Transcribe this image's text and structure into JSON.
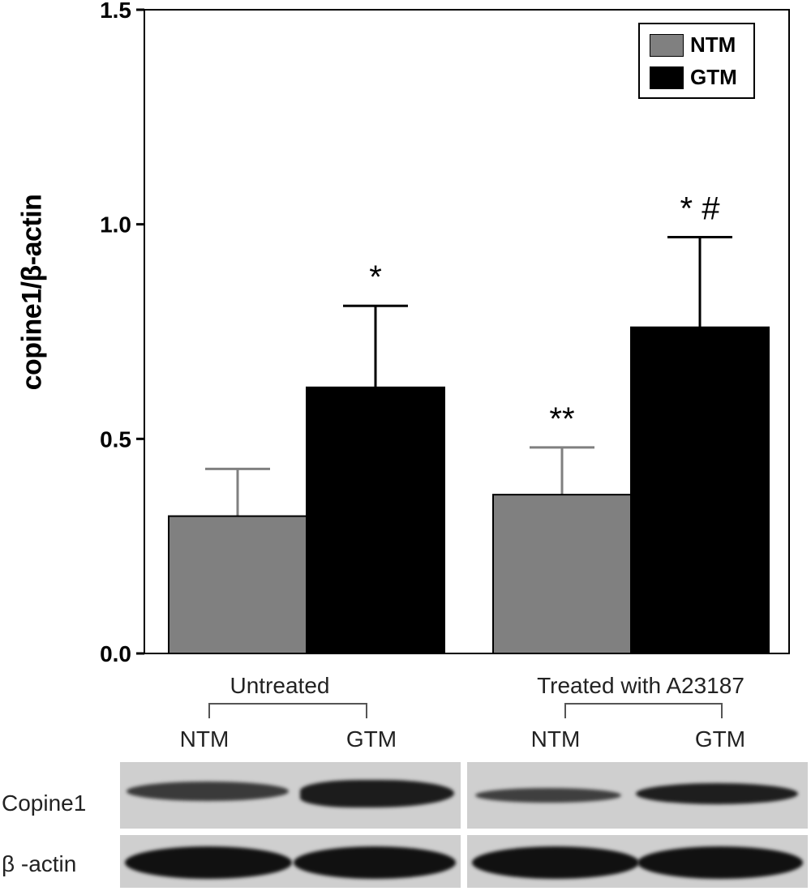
{
  "chart_data": {
    "type": "bar",
    "ylabel": "copine1/β-actin",
    "ylim": [
      0,
      1.5
    ],
    "yticks": [
      "0.0",
      "0.5",
      "1.0",
      "1.5"
    ],
    "groups": [
      "Untreated",
      "Treated with A23187"
    ],
    "series": [
      {
        "name": "NTM",
        "color": "#808080",
        "values": [
          0.32,
          0.37
        ],
        "errors": [
          0.11,
          0.11
        ]
      },
      {
        "name": "GTM",
        "color": "#000000",
        "values": [
          0.62,
          0.76
        ],
        "errors": [
          0.19,
          0.21
        ]
      }
    ],
    "annotations": [
      {
        "group": 0,
        "series": 1,
        "text": "*"
      },
      {
        "group": 1,
        "series": 0,
        "text": "**"
      },
      {
        "group": 1,
        "series": 1,
        "text": "* #"
      }
    ],
    "legend": "top-right"
  },
  "lanes": {
    "untreated": {
      "label": "Untreated",
      "ntm": "NTM",
      "gtm": "GTM"
    },
    "treated": {
      "label": "Treated with A23187",
      "ntm": "NTM",
      "gtm": "GTM"
    }
  },
  "blot": {
    "rows": [
      "Copine1",
      "β -actin"
    ]
  }
}
